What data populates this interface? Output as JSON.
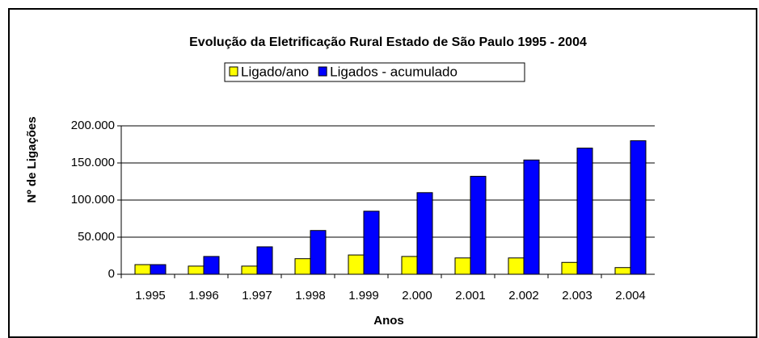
{
  "chart_data": {
    "type": "bar",
    "title": "Evolução da Eletrificação Rural Estado de São Paulo  1995 - 2004",
    "x_label": "Anos",
    "y_label": "Nº de Ligações",
    "categories": [
      "1.995",
      "1.996",
      "1.997",
      "1.998",
      "1.999",
      "2.000",
      "2.001",
      "2.002",
      "2.003",
      "2.004"
    ],
    "series": [
      {
        "name": "Ligado/ano",
        "color": "#ffff00",
        "values": [
          13000,
          11000,
          11000,
          21000,
          26000,
          24000,
          22000,
          22000,
          16000,
          9000
        ]
      },
      {
        "name": "Ligados - acumulado",
        "color": "#0000ff",
        "values": [
          13000,
          24000,
          37000,
          59000,
          85000,
          110000,
          132000,
          154000,
          170000,
          180000
        ]
      }
    ],
    "ylim": [
      0,
      200000
    ],
    "yticks": [
      0,
      {
        "value": 50000,
        "label": "50.000"
      },
      {
        "value": 100000,
        "label": "100.000"
      },
      {
        "value": 150000,
        "label": "150.000"
      },
      {
        "value": 200000,
        "label": "200.000"
      }
    ],
    "grid": true,
    "legend": "top"
  }
}
